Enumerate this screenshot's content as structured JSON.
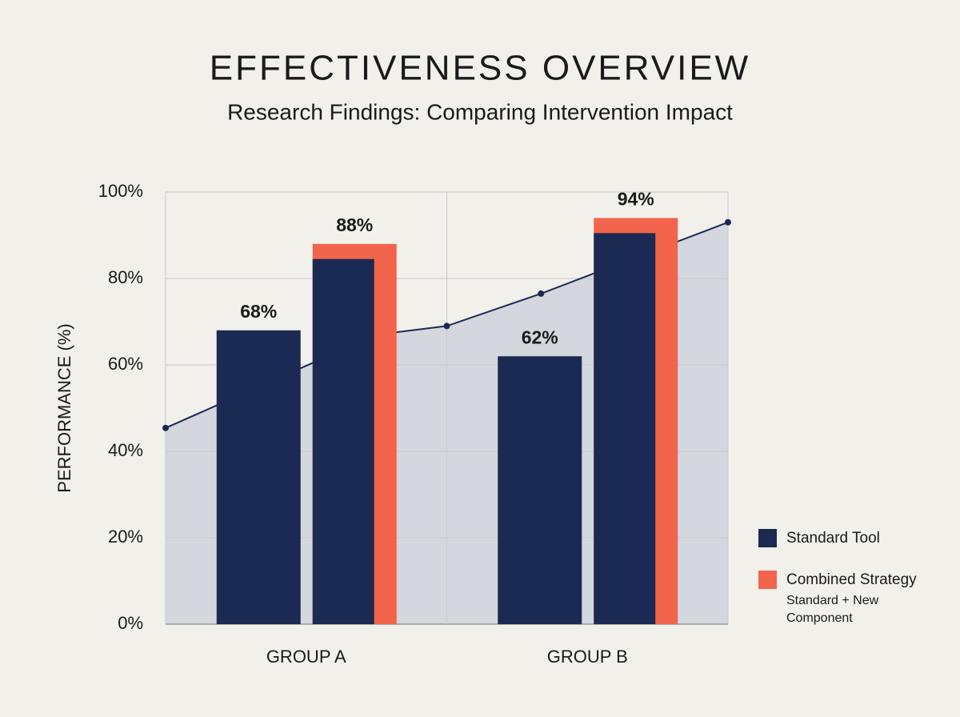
{
  "chart_data": {
    "type": "bar",
    "title": "EFFECTIVENESS OVERVIEW",
    "subtitle": "Research Findings: Comparing Intervention Impact",
    "y_label": "PERFORMANCE (%)",
    "categories": [
      "GROUP A",
      "GROUP B"
    ],
    "series": [
      {
        "name": "Standard Tool",
        "color": "#1b2a52",
        "values": [
          68,
          62
        ],
        "value_labels": [
          "68%",
          "62%"
        ]
      },
      {
        "name": "Combined Strategy",
        "color": "#f2644c",
        "values": [
          88,
          94
        ],
        "value_labels": [
          "88%",
          "94%"
        ],
        "inner_values": [
          84.5,
          90.5
        ],
        "inner_color": "#1b2a52",
        "note": "Standard + New Component"
      }
    ],
    "trend": {
      "x": [
        0,
        1.5,
        2,
        2.67,
        4
      ],
      "values": [
        45.4,
        67,
        69,
        76.5,
        93
      ],
      "color": "#1b2a52",
      "area_color": "#d5d7de"
    },
    "xlim": [
      0,
      4
    ],
    "ylim": [
      0,
      100
    ],
    "yticks": [
      {
        "value": 0,
        "label": "0%"
      },
      {
        "value": 20,
        "label": "20%"
      },
      {
        "value": 40,
        "label": "40%"
      },
      {
        "value": 60,
        "label": "60%"
      },
      {
        "value": 80,
        "label": "80%"
      },
      {
        "value": 100,
        "label": "100%"
      }
    ],
    "grid": true
  }
}
